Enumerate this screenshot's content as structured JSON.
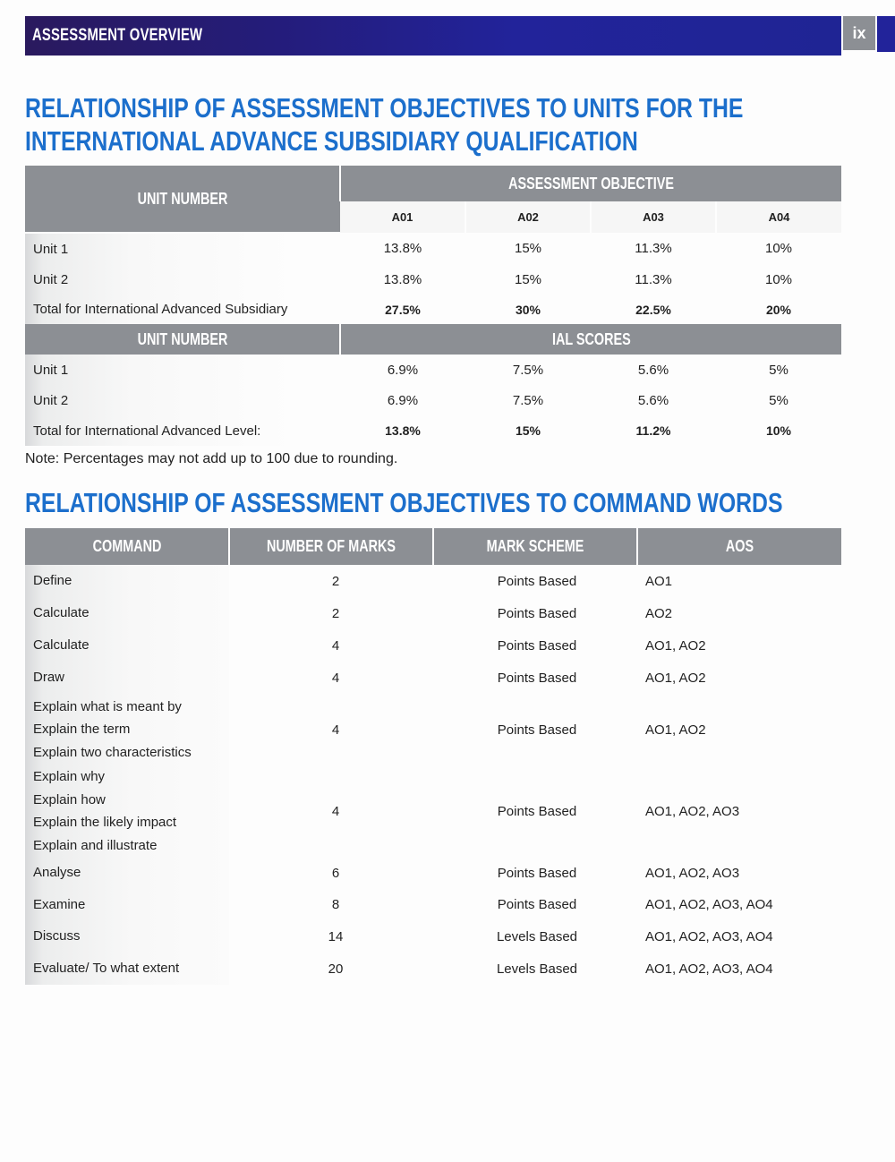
{
  "header": {
    "section": "ASSESSMENT OVERVIEW",
    "page": "ix",
    "colors": {
      "bar": "#22239a",
      "page_box": "#8c8f94",
      "title": "#1c6fcc",
      "table_header": "#8c8f94"
    }
  },
  "title1_line1": "RELATIONSHIP OF ASSESSMENT OBJECTIVES TO UNITS FOR THE",
  "title1_line2": "INTERNATIONAL ADVANCE SUBSIDIARY QUALIFICATION",
  "table1": {
    "unit_header": "UNIT NUMBER",
    "ao_header": "ASSESSMENT OBJECTIVE",
    "ao_cols": [
      "A01",
      "A02",
      "A03",
      "A04"
    ],
    "rows": [
      {
        "label": "Unit 1",
        "values": [
          "13.8%",
          "15%",
          "11.3%",
          "10%"
        ]
      },
      {
        "label": "Unit 2",
        "values": [
          "13.8%",
          "15%",
          "11.3%",
          "10%"
        ]
      },
      {
        "label": "Total for International Advanced Subsidiary",
        "values": [
          "27.5%",
          "30%",
          "22.5%",
          "20%"
        ]
      }
    ],
    "unit_header2": "UNIT NUMBER",
    "ial_header": "IAL SCORES",
    "rows2": [
      {
        "label": "Unit 1",
        "values": [
          "6.9%",
          "7.5%",
          "5.6%",
          "5%"
        ]
      },
      {
        "label": "Unit 2",
        "values": [
          "6.9%",
          "7.5%",
          "5.6%",
          "5%"
        ]
      },
      {
        "label": "Total for International Advanced Level:",
        "values": [
          "13.8%",
          "15%",
          "11.2%",
          "10%"
        ]
      }
    ]
  },
  "note": "Note: Percentages may not add up to 100 due to rounding.",
  "title2": "RELATIONSHIP OF ASSESSMENT OBJECTIVES TO COMMAND WORDS",
  "table2": {
    "headers": [
      "COMMAND",
      "NUMBER OF MARKS",
      "MARK SCHEME",
      "AOS"
    ],
    "rows": [
      {
        "command": [
          "Define"
        ],
        "marks": "2",
        "scheme": "Points Based",
        "aos": "AO1"
      },
      {
        "command": [
          "Calculate"
        ],
        "marks": "2",
        "scheme": "Points Based",
        "aos": "AO2"
      },
      {
        "command": [
          "Calculate"
        ],
        "marks": "4",
        "scheme": "Points Based",
        "aos": "AO1, AO2"
      },
      {
        "command": [
          "Draw"
        ],
        "marks": "4",
        "scheme": "Points Based",
        "aos": "AO1, AO2"
      },
      {
        "command": [
          "Explain what is meant by",
          "Explain the term",
          "Explain two characteristics"
        ],
        "marks": "4",
        "scheme": "Points Based",
        "aos": "AO1, AO2"
      },
      {
        "command": [
          "Explain why",
          "Explain how",
          "Explain the likely impact",
          "Explain and illustrate"
        ],
        "marks": "4",
        "scheme": "Points Based",
        "aos": "AO1, AO2, AO3"
      },
      {
        "command": [
          "Analyse"
        ],
        "marks": "6",
        "scheme": "Points Based",
        "aos": "AO1, AO2, AO3"
      },
      {
        "command": [
          "Examine"
        ],
        "marks": "8",
        "scheme": "Points Based",
        "aos": "AO1, AO2, AO3, AO4"
      },
      {
        "command": [
          "Discuss"
        ],
        "marks": "14",
        "scheme": "Levels Based",
        "aos": "AO1, AO2, AO3, AO4"
      },
      {
        "command": [
          "Evaluate/ To what extent"
        ],
        "marks": "20",
        "scheme": "Levels Based",
        "aos": "AO1, AO2, AO3, AO4"
      }
    ]
  }
}
